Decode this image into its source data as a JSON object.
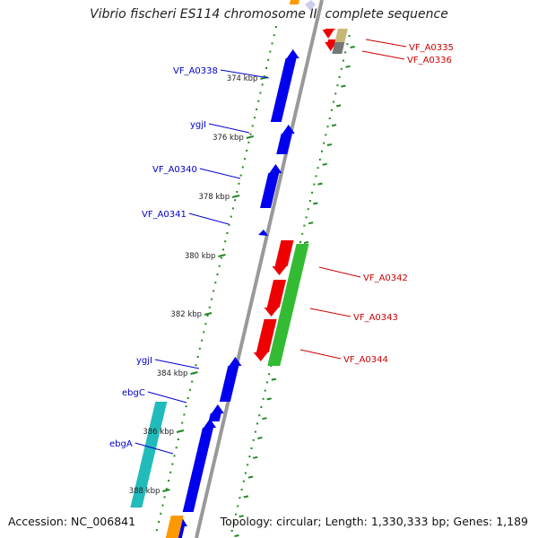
{
  "title": "Vibrio fischeri ES114 chromosome II, complete sequence",
  "accession_text": "Accession: NC_006841",
  "topology_text": "Topology: circular; Length: 1,330,333 bp; Genes: 1,189",
  "colors": {
    "forward_gene": "#0000ee",
    "reverse_gene": "#ee0000",
    "green_feature": "#33bb33",
    "cyan_feature": "#22bbbb",
    "orange_feature": "#ff9900",
    "tan_feature": "#c8b878",
    "gray_feature": "#777777",
    "backbone": "#999999",
    "tick_color": "#228822",
    "forward_label": "#0000cc",
    "reverse_label": "#cc0000"
  },
  "scale_ticks": [
    {
      "label": "374 kbp"
    },
    {
      "label": "376 kbp"
    },
    {
      "label": "378 kbp"
    },
    {
      "label": "380 kbp"
    },
    {
      "label": "382 kbp"
    },
    {
      "label": "384 kbp"
    },
    {
      "label": "386 kbp"
    },
    {
      "label": "388 kbp"
    }
  ],
  "forward_genes": [
    {
      "name": "VF_A0338"
    },
    {
      "name": "ygjI"
    },
    {
      "name": "VF_A0340"
    },
    {
      "name": "VF_A0341"
    },
    {
      "name": "ygjI"
    },
    {
      "name": "ebgC"
    },
    {
      "name": "ebgA"
    }
  ],
  "reverse_genes": [
    {
      "name": "VF_A0335"
    },
    {
      "name": "VF_A0336"
    },
    {
      "name": "VF_A0342"
    },
    {
      "name": "VF_A0343"
    },
    {
      "name": "VF_A0344"
    }
  ]
}
